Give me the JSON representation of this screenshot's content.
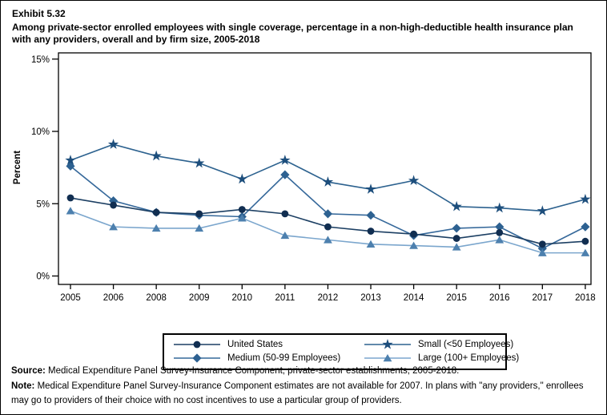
{
  "figure": {
    "exhibit_label": "Exhibit 5.32",
    "title": "Among private-sector enrolled employees with single coverage, percentage in a non-high-deductible health insurance plan with any providers, overall and by firm size, 2005-2018"
  },
  "chart_data": {
    "type": "line",
    "x_categories": [
      "2005",
      "2006",
      "2008",
      "2009",
      "2010",
      "2011",
      "2012",
      "2013",
      "2014",
      "2015",
      "2016",
      "2017",
      "2018"
    ],
    "ylabel": "Percent",
    "ylim": [
      0,
      15
    ],
    "ytick_labels": [
      "0%",
      "5%",
      "10%",
      "15%"
    ],
    "ytick_values": [
      0,
      5,
      10,
      15
    ],
    "grid": false,
    "legend_position": "bottom",
    "series": [
      {
        "name": "United States",
        "marker": "circle",
        "marker_color": "#112e51",
        "line_color": "#1c3f63",
        "values": [
          5.4,
          4.9,
          4.4,
          4.3,
          4.6,
          4.3,
          3.4,
          3.1,
          2.9,
          2.6,
          3.0,
          2.2,
          2.4
        ]
      },
      {
        "name": "Small (<50 Employees)",
        "marker": "star",
        "marker_color": "#1d4e7c",
        "line_color": "#2d628f",
        "values": [
          8.0,
          9.1,
          8.3,
          7.8,
          6.7,
          8.0,
          6.5,
          6.0,
          6.6,
          4.8,
          4.7,
          4.5,
          5.3
        ]
      },
      {
        "name": "Medium (50-99 Employees)",
        "marker": "diamond",
        "marker_color": "#2d6191",
        "line_color": "#35689a",
        "values": [
          7.6,
          5.2,
          4.4,
          4.2,
          4.1,
          7.0,
          4.3,
          4.2,
          2.8,
          3.3,
          3.4,
          1.9,
          3.4
        ]
      },
      {
        "name": "Large (100+ Employees)",
        "marker": "triangle",
        "marker_color": "#4d80ae",
        "line_color": "#7ba6cd",
        "values": [
          4.5,
          3.4,
          3.3,
          3.3,
          4.0,
          2.8,
          2.5,
          2.2,
          2.1,
          2.0,
          2.5,
          1.6,
          1.6
        ]
      }
    ]
  },
  "legend": {
    "order": [
      0,
      1,
      2,
      3
    ]
  },
  "footer": {
    "source_label": "Source:",
    "source_text": " Medical Expenditure Panel Survey-Insurance Component, private-sector establishments, 2005-2018.",
    "note_label": "Note:",
    "note_text": " Medical Expenditure Panel Survey-Insurance Component estimates are not available for 2007. In plans with \"any providers,\" enrollees may go to providers of their choice with no cost incentives to use a particular group of providers."
  }
}
